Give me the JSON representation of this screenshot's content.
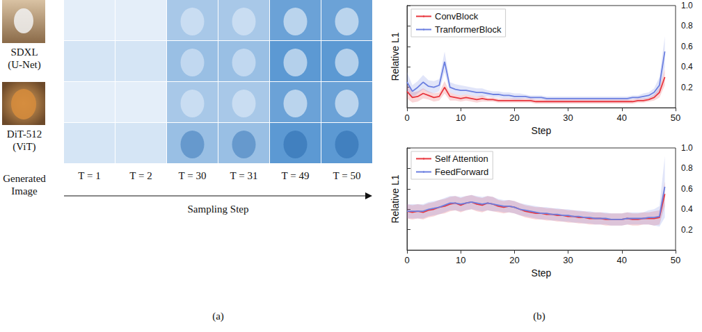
{
  "panel_a": {
    "label": "(a)",
    "rows": [
      {
        "model": "SDXL",
        "arch": "(U-Net)"
      },
      {
        "model": "DiT-512",
        "arch": "(ViT)"
      }
    ],
    "row_label": "Generated Image",
    "columns": [
      "T = 1",
      "T = 2",
      "T = 30",
      "T = 31",
      "T = 49",
      "T = 50"
    ],
    "axis_label": "Sampling Step"
  },
  "panel_b": {
    "label": "(b)"
  },
  "chart_data": [
    {
      "type": "line",
      "xlabel": "Step",
      "ylabel": "Relative L1",
      "xlim": [
        0,
        50
      ],
      "xticks": [
        0,
        10,
        20,
        30,
        40,
        50
      ],
      "ylim": [
        0,
        1
      ],
      "yticks": [
        0.2,
        0.4,
        0.6,
        0.8,
        {
          "value": 1,
          "label": "1.0"
        }
      ],
      "grid": false,
      "legend": "upper left",
      "x": [
        0,
        1,
        2,
        3,
        4,
        5,
        6,
        7,
        8,
        9,
        10,
        11,
        12,
        13,
        14,
        15,
        16,
        17,
        18,
        19,
        20,
        21,
        22,
        23,
        24,
        25,
        26,
        27,
        28,
        29,
        30,
        31,
        32,
        33,
        34,
        35,
        36,
        37,
        38,
        39,
        40,
        41,
        42,
        43,
        44,
        45,
        46,
        47,
        48
      ],
      "series": [
        {
          "name": "ConvBlock",
          "color": "#e8343c",
          "values": [
            0.16,
            0.1,
            0.11,
            0.14,
            0.12,
            0.1,
            0.11,
            0.2,
            0.11,
            0.1,
            0.09,
            0.1,
            0.09,
            0.08,
            0.09,
            0.08,
            0.08,
            0.07,
            0.07,
            0.07,
            0.07,
            0.07,
            0.07,
            0.07,
            0.06,
            0.06,
            0.06,
            0.06,
            0.06,
            0.06,
            0.06,
            0.06,
            0.06,
            0.06,
            0.06,
            0.06,
            0.06,
            0.06,
            0.06,
            0.06,
            0.06,
            0.06,
            0.06,
            0.07,
            0.07,
            0.08,
            0.1,
            0.15,
            0.3
          ],
          "spread": [
            0.07,
            0.05,
            0.05,
            0.05,
            0.04,
            0.04,
            0.04,
            0.06,
            0.04,
            0.03,
            0.03,
            0.03,
            0.03,
            0.03,
            0.03,
            0.02,
            0.02,
            0.02,
            0.02,
            0.02,
            0.02,
            0.02,
            0.02,
            0.02,
            0.02,
            0.02,
            0.02,
            0.02,
            0.02,
            0.02,
            0.02,
            0.02,
            0.02,
            0.02,
            0.02,
            0.02,
            0.02,
            0.02,
            0.02,
            0.02,
            0.02,
            0.02,
            0.02,
            0.02,
            0.02,
            0.02,
            0.03,
            0.05,
            0.08
          ]
        },
        {
          "name": "TranformerBlock",
          "color": "#6b7fe0",
          "values": [
            0.25,
            0.16,
            0.2,
            0.25,
            0.21,
            0.2,
            0.22,
            0.45,
            0.2,
            0.18,
            0.17,
            0.17,
            0.16,
            0.15,
            0.15,
            0.14,
            0.13,
            0.13,
            0.12,
            0.12,
            0.11,
            0.11,
            0.11,
            0.1,
            0.1,
            0.1,
            0.09,
            0.09,
            0.09,
            0.09,
            0.09,
            0.09,
            0.09,
            0.09,
            0.09,
            0.09,
            0.09,
            0.09,
            0.09,
            0.09,
            0.09,
            0.09,
            0.1,
            0.1,
            0.11,
            0.12,
            0.15,
            0.22,
            0.55
          ],
          "spread": [
            0.1,
            0.06,
            0.06,
            0.07,
            0.06,
            0.06,
            0.06,
            0.1,
            0.05,
            0.05,
            0.05,
            0.04,
            0.04,
            0.04,
            0.04,
            0.03,
            0.03,
            0.03,
            0.03,
            0.03,
            0.03,
            0.03,
            0.02,
            0.02,
            0.02,
            0.02,
            0.02,
            0.02,
            0.02,
            0.02,
            0.02,
            0.02,
            0.02,
            0.02,
            0.02,
            0.02,
            0.02,
            0.02,
            0.02,
            0.02,
            0.02,
            0.02,
            0.02,
            0.02,
            0.03,
            0.03,
            0.04,
            0.08,
            0.15
          ]
        }
      ]
    },
    {
      "type": "line",
      "xlabel": "Step",
      "ylabel": "Relative L1",
      "xlim": [
        0,
        50
      ],
      "xticks": [
        0,
        10,
        20,
        30,
        40,
        50
      ],
      "ylim": [
        0,
        1
      ],
      "yticks": [
        0.2,
        0.4,
        0.6,
        0.8,
        {
          "value": 1,
          "label": "1.0"
        }
      ],
      "grid": false,
      "legend": "upper left",
      "x": [
        0,
        1,
        2,
        3,
        4,
        5,
        6,
        7,
        8,
        9,
        10,
        11,
        12,
        13,
        14,
        15,
        16,
        17,
        18,
        19,
        20,
        21,
        22,
        23,
        24,
        25,
        26,
        27,
        28,
        29,
        30,
        31,
        32,
        33,
        34,
        35,
        36,
        37,
        38,
        39,
        40,
        41,
        42,
        43,
        44,
        45,
        46,
        47,
        48
      ],
      "series": [
        {
          "name": "Self Attention",
          "color": "#e8343c",
          "values": [
            0.38,
            0.37,
            0.38,
            0.37,
            0.39,
            0.4,
            0.42,
            0.43,
            0.45,
            0.46,
            0.44,
            0.46,
            0.47,
            0.45,
            0.44,
            0.46,
            0.45,
            0.43,
            0.42,
            0.43,
            0.42,
            0.4,
            0.38,
            0.37,
            0.36,
            0.36,
            0.35,
            0.35,
            0.34,
            0.34,
            0.33,
            0.33,
            0.32,
            0.32,
            0.31,
            0.31,
            0.31,
            0.3,
            0.3,
            0.3,
            0.3,
            0.31,
            0.3,
            0.3,
            0.31,
            0.31,
            0.31,
            0.32,
            0.55
          ],
          "spread": [
            0.07,
            0.07,
            0.07,
            0.07,
            0.07,
            0.07,
            0.07,
            0.07,
            0.07,
            0.07,
            0.07,
            0.07,
            0.07,
            0.07,
            0.07,
            0.07,
            0.07,
            0.06,
            0.06,
            0.06,
            0.06,
            0.06,
            0.06,
            0.06,
            0.06,
            0.06,
            0.06,
            0.06,
            0.06,
            0.06,
            0.06,
            0.06,
            0.06,
            0.06,
            0.06,
            0.06,
            0.06,
            0.06,
            0.06,
            0.06,
            0.06,
            0.06,
            0.06,
            0.06,
            0.06,
            0.06,
            0.07,
            0.07,
            0.12
          ]
        },
        {
          "name": "FeedForward",
          "color": "#6b7fe0",
          "values": [
            0.38,
            0.38,
            0.38,
            0.38,
            0.4,
            0.41,
            0.42,
            0.44,
            0.46,
            0.46,
            0.45,
            0.46,
            0.47,
            0.46,
            0.45,
            0.46,
            0.45,
            0.44,
            0.43,
            0.43,
            0.42,
            0.4,
            0.39,
            0.38,
            0.37,
            0.36,
            0.36,
            0.35,
            0.35,
            0.34,
            0.34,
            0.33,
            0.33,
            0.32,
            0.32,
            0.31,
            0.31,
            0.31,
            0.3,
            0.3,
            0.3,
            0.31,
            0.31,
            0.31,
            0.31,
            0.32,
            0.32,
            0.33,
            0.62
          ],
          "spread": [
            0.07,
            0.07,
            0.07,
            0.07,
            0.07,
            0.07,
            0.07,
            0.07,
            0.07,
            0.07,
            0.07,
            0.07,
            0.07,
            0.07,
            0.07,
            0.07,
            0.07,
            0.06,
            0.06,
            0.06,
            0.06,
            0.06,
            0.06,
            0.06,
            0.06,
            0.06,
            0.06,
            0.06,
            0.06,
            0.06,
            0.06,
            0.06,
            0.06,
            0.06,
            0.06,
            0.06,
            0.06,
            0.06,
            0.06,
            0.06,
            0.06,
            0.06,
            0.06,
            0.06,
            0.06,
            0.07,
            0.08,
            0.1,
            0.3
          ]
        }
      ]
    }
  ]
}
